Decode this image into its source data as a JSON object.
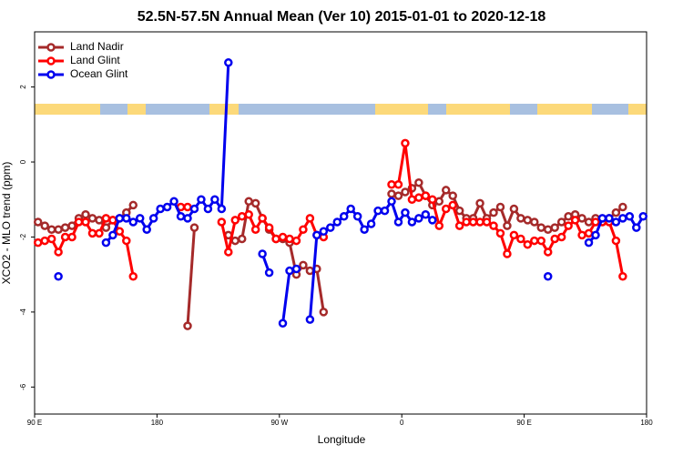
{
  "chart_data": {
    "type": "line",
    "title": "52.5N-57.5N Annual Mean (Ver 10)   2015-01-01 to 2020-12-18",
    "x_label": "Longitude",
    "y_label": "XCO2 - MLO trend (ppm)",
    "xlim": [
      90,
      540
    ],
    "ylim": [
      -6.72,
      3.47
    ],
    "xticks": [
      {
        "value": 90,
        "label": "90 E"
      },
      {
        "value": 180,
        "label": "180"
      },
      {
        "value": 270,
        "label": "90 W"
      },
      {
        "value": 360,
        "label": "0"
      },
      {
        "value": 450,
        "label": "90 E"
      },
      {
        "value": 540,
        "label": "180"
      }
    ],
    "yticks": [
      -6,
      -4,
      -2,
      0,
      2
    ],
    "legend": "top-left",
    "x": [
      92.5,
      97.5,
      102.5,
      107.5,
      112.5,
      117.5,
      122.5,
      127.5,
      132.5,
      137.5,
      142.5,
      147.5,
      152.5,
      157.5,
      162.5,
      167.5,
      172.5,
      177.5,
      182.5,
      187.5,
      192.5,
      197.5,
      202.5,
      207.5,
      212.5,
      217.5,
      222.5,
      227.5,
      232.5,
      237.5,
      242.5,
      247.5,
      252.5,
      257.5,
      262.5,
      267.5,
      272.5,
      277.5,
      282.5,
      287.5,
      292.5,
      297.5,
      302.5,
      307.5,
      312.5,
      317.5,
      322.5,
      327.5,
      332.5,
      337.5,
      342.5,
      347.5,
      352.5,
      357.5,
      362.5,
      367.5,
      372.5,
      377.5,
      382.5,
      387.5,
      392.5,
      397.5,
      402.5,
      407.5,
      412.5,
      417.5,
      422.5,
      427.5,
      432.5,
      437.5,
      442.5,
      447.5,
      452.5,
      457.5,
      462.5,
      467.5,
      472.5,
      477.5,
      482.5,
      487.5,
      492.5,
      497.5,
      502.5,
      507.5,
      512.5,
      517.5,
      522.5,
      527.5,
      532.5,
      537.5
    ],
    "series": [
      {
        "name": "Land Nadir",
        "color": "#a52a2a",
        "values": [
          -1.6,
          -1.7,
          -1.8,
          -1.8,
          -1.75,
          -1.7,
          -1.5,
          -1.4,
          -1.5,
          -1.55,
          -1.75,
          -1.55,
          -1.5,
          -1.35,
          -1.15,
          null,
          null,
          null,
          null,
          null,
          null,
          null,
          -4.37,
          -1.75,
          null,
          null,
          null,
          null,
          -1.95,
          -2.1,
          -2.05,
          -1.05,
          -1.1,
          -1.5,
          -1.8,
          -2.05,
          -2.05,
          -2.15,
          -3.0,
          -2.75,
          -2.9,
          -2.85,
          -4.0,
          null,
          null,
          null,
          null,
          null,
          null,
          null,
          null,
          null,
          -0.85,
          -0.9,
          -0.8,
          -0.7,
          -0.55,
          -0.9,
          -1.15,
          -1.05,
          -0.75,
          -0.9,
          -1.3,
          -1.5,
          -1.5,
          -1.1,
          -1.5,
          -1.35,
          -1.2,
          -1.7,
          -1.25,
          -1.5,
          -1.55,
          -1.6,
          -1.75,
          -1.8,
          -1.75,
          -1.6,
          -1.45,
          -1.4,
          -1.5,
          -1.6,
          -1.5,
          -1.55,
          -1.5,
          -1.35,
          -1.2,
          null,
          null,
          null
        ]
      },
      {
        "name": "Land Glint",
        "color": "#ff0000",
        "values": [
          -2.15,
          -2.1,
          -2.05,
          -2.4,
          -2.0,
          -2.0,
          -1.6,
          -1.6,
          -1.9,
          -1.9,
          -1.5,
          -1.55,
          -1.85,
          -2.1,
          -3.05,
          null,
          null,
          null,
          null,
          null,
          null,
          -1.2,
          -1.2,
          null,
          null,
          null,
          null,
          -1.6,
          -2.4,
          -1.55,
          -1.45,
          -1.4,
          -1.8,
          -1.5,
          -1.75,
          -2.05,
          -2.0,
          -2.05,
          -2.1,
          -1.8,
          -1.5,
          -1.95,
          -2.0,
          null,
          null,
          null,
          null,
          null,
          null,
          null,
          null,
          null,
          -0.6,
          -0.6,
          0.5,
          -1.0,
          -0.95,
          -0.9,
          -1.0,
          -1.7,
          -1.25,
          -1.15,
          -1.7,
          -1.6,
          -1.6,
          -1.6,
          -1.6,
          -1.7,
          -1.9,
          -2.45,
          -1.95,
          -2.05,
          -2.2,
          -2.1,
          -2.1,
          -2.4,
          -2.05,
          -2.0,
          -1.7,
          -1.55,
          -1.95,
          -1.9,
          -1.6,
          -1.6,
          -1.6,
          -2.1,
          -3.05,
          null,
          null,
          null
        ]
      },
      {
        "name": "Ocean Glint",
        "color": "#0000ee",
        "values": [
          null,
          null,
          null,
          -3.05,
          null,
          null,
          null,
          null,
          null,
          null,
          -2.15,
          -1.95,
          -1.5,
          -1.5,
          -1.6,
          -1.5,
          -1.8,
          -1.5,
          -1.25,
          -1.2,
          -1.05,
          -1.45,
          -1.5,
          -1.25,
          -1.0,
          -1.25,
          -1.0,
          -1.25,
          2.65,
          null,
          null,
          null,
          null,
          -2.45,
          -2.95,
          null,
          -4.3,
          -2.9,
          -2.85,
          null,
          -4.2,
          -1.95,
          -1.85,
          -1.75,
          -1.6,
          -1.45,
          -1.25,
          -1.45,
          -1.8,
          -1.65,
          -1.3,
          -1.3,
          -1.05,
          -1.6,
          -1.35,
          -1.6,
          -1.5,
          -1.4,
          -1.55,
          null,
          null,
          null,
          null,
          null,
          null,
          null,
          null,
          null,
          null,
          null,
          null,
          null,
          null,
          null,
          null,
          -3.05,
          null,
          null,
          null,
          null,
          null,
          -2.15,
          -1.95,
          -1.5,
          -1.5,
          -1.6,
          -1.5,
          -1.45,
          -1.75,
          -1.45
        ]
      }
    ]
  }
}
